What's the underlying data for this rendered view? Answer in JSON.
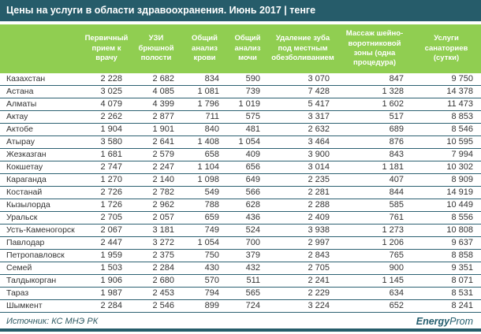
{
  "title": "Цены на услуги в области здравоохранения. Июнь 2017 | тенге",
  "chart_data": {
    "type": "table",
    "columns": [
      "",
      "Первичный прием к врачу",
      "УЗИ брюшной полости",
      "Общий анализ крови",
      "Общий анализ мочи",
      "Удаление зуба под местным обезболиванием",
      "Массаж шейно-воротниковой зоны (одна процедура)",
      "Услуги санаториев (сутки)"
    ],
    "rows": [
      {
        "city": "Казахстан",
        "values": [
          "2 228",
          "2 682",
          "834",
          "590",
          "3 070",
          "847",
          "9 750"
        ]
      },
      {
        "city": "Астана",
        "values": [
          "3 025",
          "4 085",
          "1 081",
          "739",
          "7 428",
          "1 328",
          "14 378"
        ]
      },
      {
        "city": "Алматы",
        "values": [
          "4 079",
          "4 399",
          "1 796",
          "1 019",
          "5 417",
          "1 602",
          "11 473"
        ]
      },
      {
        "city": "Актау",
        "values": [
          "2 262",
          "2 877",
          "711",
          "575",
          "3 317",
          "517",
          "8 853"
        ]
      },
      {
        "city": "Актобе",
        "values": [
          "1 904",
          "1 901",
          "840",
          "481",
          "2 632",
          "689",
          "8 546"
        ]
      },
      {
        "city": "Атырау",
        "values": [
          "3 580",
          "2 641",
          "1 408",
          "1 054",
          "3 464",
          "876",
          "10 595"
        ]
      },
      {
        "city": "Жезказган",
        "values": [
          "1 681",
          "2 579",
          "658",
          "409",
          "3 900",
          "843",
          "7 994"
        ]
      },
      {
        "city": "Кокшетау",
        "values": [
          "2 747",
          "2 247",
          "1 104",
          "656",
          "3 014",
          "1 181",
          "10 302"
        ]
      },
      {
        "city": "Караганда",
        "values": [
          "1 270",
          "2 140",
          "1 098",
          "649",
          "2 235",
          "407",
          "8 909"
        ]
      },
      {
        "city": "Костанай",
        "values": [
          "2 726",
          "2 782",
          "549",
          "566",
          "2 281",
          "844",
          "14 919"
        ]
      },
      {
        "city": "Кызылорда",
        "values": [
          "1 726",
          "2 962",
          "788",
          "628",
          "2 288",
          "585",
          "10 449"
        ]
      },
      {
        "city": "Уральск",
        "values": [
          "2 705",
          "2 057",
          "659",
          "436",
          "2 409",
          "761",
          "8 556"
        ]
      },
      {
        "city": "Усть-Каменогорск",
        "values": [
          "2 067",
          "3 181",
          "749",
          "524",
          "3 938",
          "1 273",
          "10 808"
        ]
      },
      {
        "city": "Павлодар",
        "values": [
          "2 447",
          "3 272",
          "1 054",
          "700",
          "2 997",
          "1 206",
          "9 637"
        ]
      },
      {
        "city": "Петропавловск",
        "values": [
          "1 959",
          "2 375",
          "750",
          "379",
          "2 843",
          "765",
          "8 858"
        ]
      },
      {
        "city": "Семей",
        "values": [
          "1 503",
          "2 284",
          "430",
          "432",
          "2 705",
          "900",
          "9 351"
        ]
      },
      {
        "city": "Талдыкорган",
        "values": [
          "1 906",
          "2 680",
          "570",
          "511",
          "2 241",
          "1 145",
          "8 071"
        ]
      },
      {
        "city": "Тараз",
        "values": [
          "1 987",
          "2 453",
          "794",
          "565",
          "2 229",
          "634",
          "8 531"
        ]
      },
      {
        "city": "Шымкент",
        "values": [
          "2 284",
          "2 546",
          "899",
          "724",
          "3 224",
          "652",
          "8 241"
        ]
      }
    ]
  },
  "footer": {
    "source": "Источник: КС МНЭ РК",
    "brand_bold": "Energy",
    "brand_light": "Prom"
  },
  "colors": {
    "title_bg": "#265c6a",
    "header_bg": "#90ce51",
    "row_line": "#2c6172",
    "brand_teal": "#2a6171"
  }
}
